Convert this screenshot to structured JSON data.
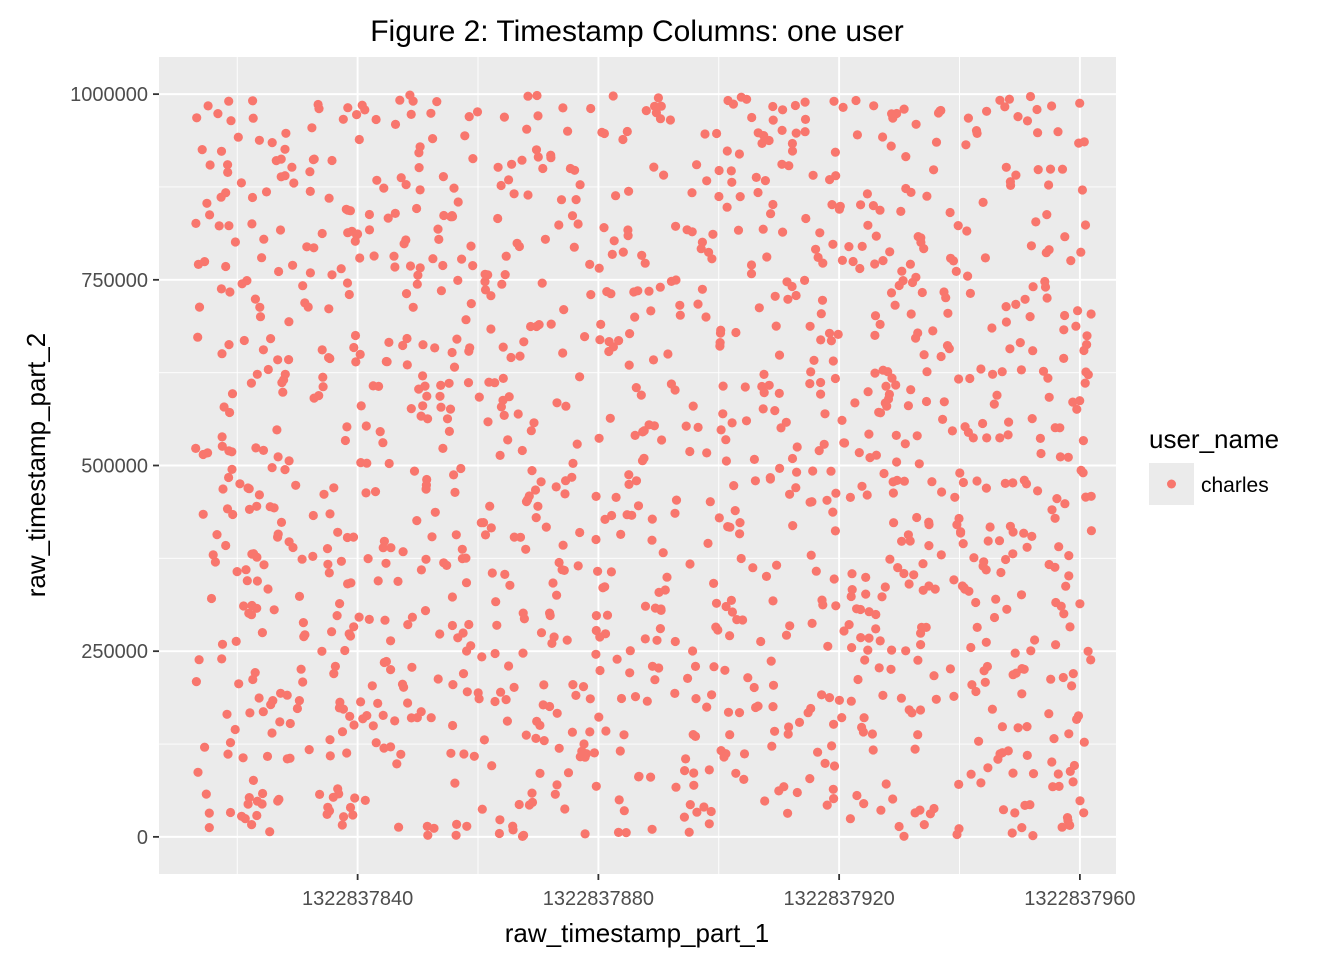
{
  "chart_data": {
    "type": "scatter",
    "title": "Figure 2: Timestamp Columns: one user",
    "xlabel": "raw_timestamp_part_1",
    "ylabel": "raw_timestamp_part_2",
    "xlim": [
      1322837807,
      1322837966
    ],
    "ylim": [
      -50000,
      1050000
    ],
    "xticks": [
      1322837840,
      1322837880,
      1322837920,
      1322837960
    ],
    "xtick_labels": [
      "1322837840",
      "1322837880",
      "1322837920",
      "1322837960"
    ],
    "yticks": [
      0,
      250000,
      500000,
      750000,
      1000000
    ],
    "ytick_labels": [
      "0",
      "250000",
      "500000",
      "750000",
      "1000000"
    ],
    "grid": true,
    "legend": {
      "title": "user_name",
      "position": "right",
      "entries": [
        {
          "label": "charles",
          "color": "#F8766D"
        }
      ]
    },
    "series": [
      {
        "name": "charles",
        "color": "#F8766D",
        "x_range": [
          1322837813,
          1322837962
        ],
        "y_range": [
          0,
          999000
        ],
        "point_count": 1400,
        "distribution": "uniform"
      }
    ]
  },
  "colors": {
    "panel_background": "#EBEBEB",
    "grid_major": "#FFFFFF",
    "point": "#F8766D",
    "tick_text": "#4D4D4D"
  }
}
